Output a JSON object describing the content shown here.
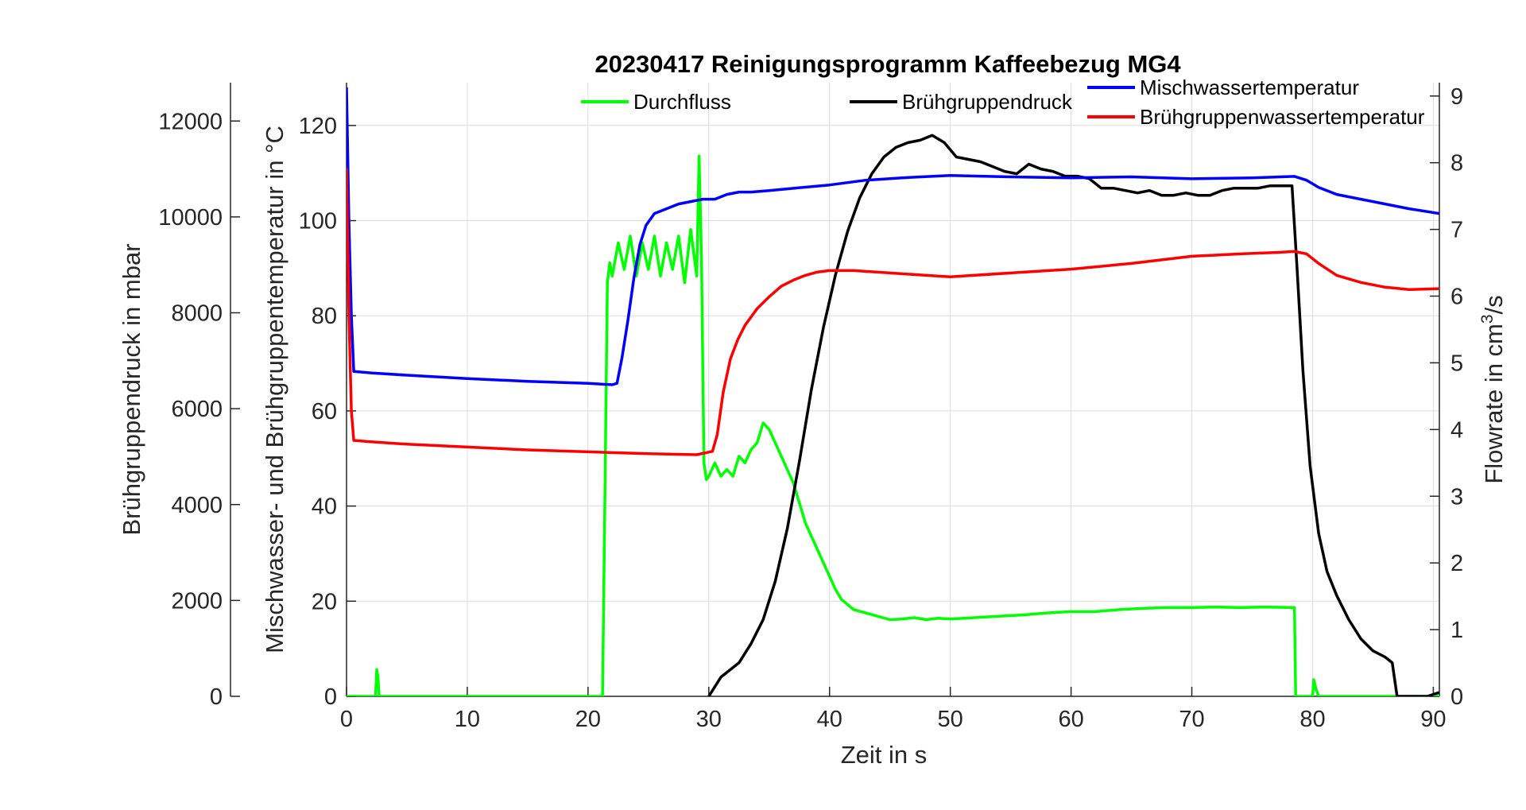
{
  "chart_data": {
    "type": "line",
    "title": "20230417 Reinigungsprogramm  Kaffeebezug MG4",
    "xlabel": "Zeit in s",
    "xlim": [
      0,
      90.5
    ],
    "xticks": [
      "0",
      "10",
      "20",
      "30",
      "40",
      "50",
      "60",
      "70",
      "80",
      "90"
    ],
    "y_left_outer": {
      "label": "Brühgruppendruck in mbar",
      "lim": [
        0,
        12800
      ],
      "ticks": [
        "0",
        "2000",
        "4000",
        "6000",
        "8000",
        "10000",
        "12000"
      ]
    },
    "y_left_inner": {
      "label": "Mischwasser- und Brühgruppentemperatur in °C",
      "lim": [
        0,
        129
      ],
      "ticks": [
        "0",
        "20",
        "40",
        "60",
        "80",
        "100",
        "120"
      ]
    },
    "y_right": {
      "label_main": "Flowrate in cm",
      "label_sup": "3",
      "label_end": "/s",
      "lim": [
        0,
        9.2
      ],
      "ticks": [
        "0",
        "1",
        "2",
        "3",
        "4",
        "5",
        "6",
        "7",
        "8",
        "9"
      ]
    },
    "grid": true,
    "legend_placement": "top",
    "series": [
      {
        "name": "Durchfluss",
        "color": "#00ff00",
        "axis": "right",
        "x": [
          0,
          2.4,
          2.5,
          2.6,
          2.7,
          21.2,
          21.4,
          21.6,
          21.8,
          22.0,
          22.5,
          23.0,
          23.5,
          24,
          24.5,
          25,
          25.5,
          26,
          26.5,
          27,
          27.5,
          28,
          28.5,
          29.0,
          29.2,
          29.4,
          29.6,
          29.8,
          30.0,
          30.5,
          31,
          31.5,
          32,
          32.5,
          33,
          33.5,
          34,
          34.5,
          35,
          35.5,
          36,
          36.5,
          37,
          37.5,
          38,
          38.5,
          39,
          39.5,
          40,
          40.5,
          41,
          42,
          43,
          44,
          45,
          46,
          47,
          48,
          49,
          50,
          52,
          54,
          56,
          58,
          60,
          62,
          64,
          66,
          68,
          70,
          72,
          74,
          76,
          78.5,
          78.6,
          79,
          80.0,
          80.1,
          80.3,
          80.5,
          90.5
        ],
        "y": [
          0,
          0,
          0.4,
          0.3,
          0,
          0,
          3.0,
          6.2,
          6.5,
          6.3,
          6.8,
          6.4,
          6.9,
          6.3,
          6.8,
          6.4,
          6.9,
          6.3,
          6.8,
          6.4,
          6.9,
          6.2,
          7.0,
          6.3,
          8.1,
          6.5,
          3.5,
          3.25,
          3.3,
          3.5,
          3.3,
          3.4,
          3.3,
          3.6,
          3.5,
          3.7,
          3.8,
          4.1,
          4.0,
          3.8,
          3.6,
          3.4,
          3.2,
          2.9,
          2.6,
          2.4,
          2.2,
          2.0,
          1.8,
          1.6,
          1.45,
          1.3,
          1.25,
          1.2,
          1.15,
          1.16,
          1.18,
          1.15,
          1.17,
          1.16,
          1.18,
          1.2,
          1.22,
          1.25,
          1.27,
          1.27,
          1.3,
          1.32,
          1.33,
          1.33,
          1.34,
          1.33,
          1.34,
          1.33,
          0,
          0,
          0,
          0.25,
          0.1,
          0,
          0
        ]
      },
      {
        "name": "Brühgruppendruck",
        "color": "#000000",
        "axis": "left_outer",
        "x": [
          30.0,
          31.0,
          32.5,
          33.5,
          34.5,
          35.5,
          36.5,
          37.5,
          38.5,
          39.5,
          40.5,
          41.5,
          42.5,
          43.5,
          44.5,
          45.5,
          46.5,
          47.5,
          48.5,
          49.5,
          50.5,
          51.5,
          52.5,
          53.5,
          54.5,
          55.5,
          56.5,
          57.5,
          58.5,
          59.5,
          60.5,
          61.5,
          62.5,
          63.5,
          64.5,
          65.5,
          66.5,
          67.5,
          68.5,
          69.5,
          70.5,
          71.5,
          72.5,
          73.5,
          74.5,
          75.5,
          76.5,
          77.5,
          78.3,
          78.7,
          79.2,
          79.8,
          80.5,
          81.2,
          82,
          83,
          84,
          85,
          86,
          86.6,
          87.0,
          87.5,
          88.5,
          89.5,
          90.5
        ],
        "y": [
          0,
          400,
          700,
          1100,
          1600,
          2400,
          3500,
          4900,
          6400,
          7700,
          8800,
          9700,
          10400,
          10900,
          11250,
          11450,
          11550,
          11600,
          11700,
          11550,
          11250,
          11200,
          11150,
          11050,
          10950,
          10900,
          11100,
          11000,
          10950,
          10850,
          10850,
          10800,
          10600,
          10600,
          10550,
          10500,
          10550,
          10450,
          10450,
          10500,
          10450,
          10450,
          10550,
          10600,
          10600,
          10600,
          10650,
          10650,
          10650,
          9000,
          6800,
          4800,
          3400,
          2600,
          2100,
          1600,
          1200,
          950,
          820,
          700,
          0,
          0,
          0,
          0,
          80
        ]
      },
      {
        "name": "Mischwassertemperatur",
        "color": "#0000ff",
        "axis": "left_inner",
        "x": [
          0,
          0.2,
          0.4,
          0.6,
          2,
          5,
          10,
          15,
          20,
          22.0,
          22.4,
          22.8,
          23.3,
          23.8,
          24.3,
          24.8,
          25.5,
          26.5,
          27.5,
          28.5,
          29.5,
          30.5,
          31.5,
          32.5,
          33.5,
          35,
          37,
          40,
          43,
          46,
          50,
          55,
          60,
          65,
          70,
          75,
          78.5,
          79.5,
          80.5,
          82,
          84,
          86,
          88,
          90.5
        ],
        "y": [
          128,
          100,
          80,
          68.3,
          68,
          67.5,
          66.8,
          66.2,
          65.8,
          65.5,
          65.8,
          71,
          79,
          88,
          95,
          99,
          101.5,
          102.5,
          103.5,
          104,
          104.5,
          104.5,
          105.5,
          106,
          106,
          106.3,
          106.8,
          107.5,
          108.5,
          109,
          109.5,
          109.2,
          109,
          109.2,
          108.8,
          109,
          109.3,
          108.5,
          107,
          105.5,
          104.5,
          103.5,
          102.5,
          101.5
        ]
      },
      {
        "name": "Brühgruppenwassertemperatur",
        "color": "#ff0000",
        "axis": "left_inner",
        "x": [
          0,
          0.2,
          0.4,
          0.6,
          2,
          5,
          10,
          15,
          20,
          25,
          29,
          30.3,
          30.7,
          31.2,
          31.8,
          32.4,
          33.0,
          34,
          35,
          36,
          37,
          38,
          39,
          40,
          42,
          45,
          48,
          50,
          55,
          60,
          65,
          70,
          74,
          77,
          78.5,
          79.5,
          80.5,
          82,
          84,
          86,
          88,
          90.5
        ],
        "y": [
          111,
          80,
          60,
          53.8,
          53.5,
          53,
          52.4,
          51.8,
          51.4,
          51,
          50.8,
          51.5,
          55,
          64,
          71,
          75,
          78,
          81.5,
          84,
          86.2,
          87.5,
          88.5,
          89.2,
          89.5,
          89.5,
          89,
          88.5,
          88.2,
          89,
          89.8,
          91,
          92.5,
          93,
          93.3,
          93.5,
          93,
          91,
          88.5,
          87,
          86,
          85.5,
          85.7
        ]
      }
    ]
  }
}
